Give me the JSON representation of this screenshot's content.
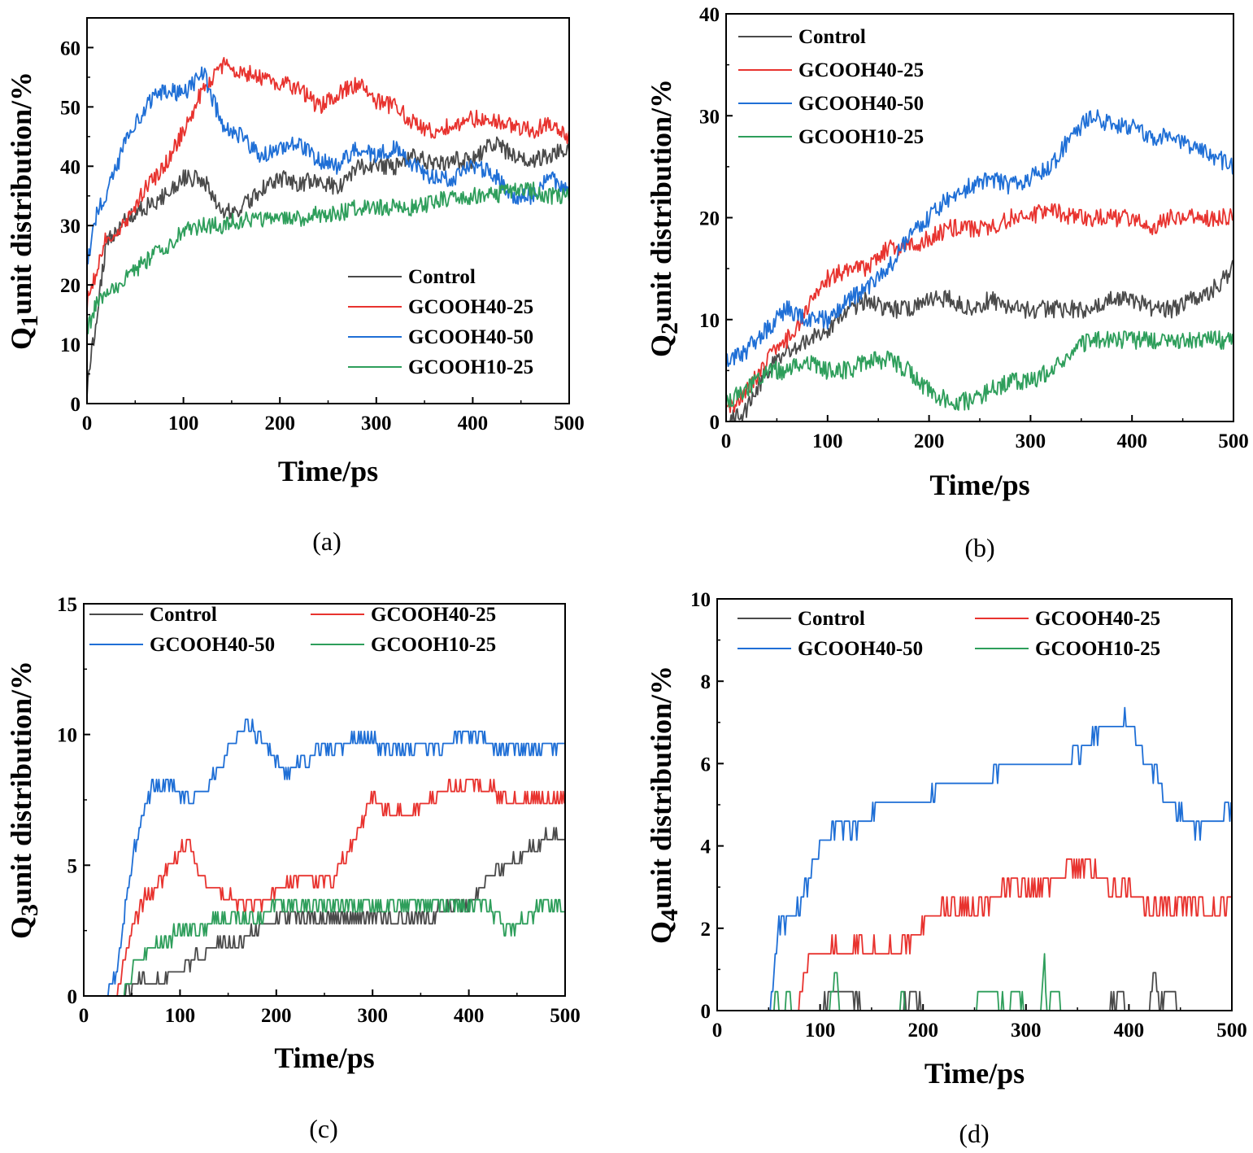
{
  "colors": {
    "Control": "#4a4a4a",
    "GCOOH40-25": "#e8332f",
    "GCOOH40-50": "#1f6fd6",
    "GCOOH10-25": "#2e9e5b"
  },
  "chart_data": [
    {
      "id": "a",
      "type": "line",
      "panel_label": "(a)",
      "ylabel_sub": "1",
      "ylabel_prefix": "Q",
      "ylabel_rest": "unit distribution/%",
      "xlabel": "Time/ps",
      "xlim": [
        0,
        500
      ],
      "ylim": [
        0,
        65
      ],
      "xticks": [
        0,
        100,
        200,
        300,
        400,
        500
      ],
      "yticks": [
        0,
        10,
        20,
        30,
        40,
        50,
        60
      ],
      "legend": {
        "position": "lower-right",
        "columns": 1
      },
      "series": [
        {
          "name": "Control",
          "x": [
            0,
            10,
            20,
            40,
            60,
            80,
            100,
            120,
            140,
            160,
            180,
            200,
            220,
            240,
            260,
            280,
            300,
            320,
            340,
            360,
            380,
            400,
            420,
            440,
            460,
            480,
            500
          ],
          "values": [
            2,
            15,
            27,
            31,
            33,
            35,
            38,
            38,
            32,
            33,
            36,
            38,
            37,
            38,
            36,
            40,
            40,
            40,
            42,
            40,
            41,
            41,
            44,
            42,
            41,
            42,
            43
          ]
        },
        {
          "name": "GCOOH40-25",
          "x": [
            0,
            10,
            20,
            40,
            60,
            80,
            100,
            120,
            140,
            160,
            180,
            200,
            220,
            240,
            260,
            280,
            300,
            320,
            340,
            360,
            380,
            400,
            420,
            440,
            460,
            480,
            500
          ],
          "values": [
            17,
            22,
            28,
            30,
            36,
            40,
            46,
            53,
            57,
            56,
            55,
            54,
            53,
            50,
            52,
            54,
            51,
            50,
            47,
            46,
            47,
            48,
            48,
            47,
            46,
            47,
            45
          ]
        },
        {
          "name": "GCOOH40-50",
          "x": [
            0,
            10,
            20,
            40,
            60,
            80,
            100,
            120,
            140,
            160,
            180,
            200,
            220,
            240,
            260,
            280,
            300,
            320,
            340,
            360,
            380,
            400,
            420,
            440,
            460,
            480,
            500
          ],
          "values": [
            23,
            32,
            35,
            44,
            50,
            53,
            52,
            56,
            47,
            45,
            42,
            43,
            44,
            41,
            40,
            43,
            42,
            43,
            40,
            38,
            38,
            40,
            39,
            35,
            35,
            38,
            36
          ]
        },
        {
          "name": "GCOOH10-25",
          "x": [
            0,
            10,
            20,
            40,
            60,
            80,
            100,
            120,
            140,
            160,
            180,
            200,
            220,
            240,
            260,
            280,
            300,
            320,
            340,
            360,
            380,
            400,
            420,
            440,
            460,
            480,
            500
          ],
          "values": [
            12,
            17,
            18,
            21,
            24,
            26,
            29,
            30,
            30,
            31,
            31,
            31,
            31,
            32,
            32,
            33,
            33,
            33,
            33,
            34,
            35,
            35,
            35,
            36,
            36,
            35,
            35
          ]
        }
      ]
    },
    {
      "id": "b",
      "type": "line",
      "panel_label": "(b)",
      "ylabel_sub": "2",
      "ylabel_prefix": "Q",
      "ylabel_rest": "unit distribution/%",
      "xlabel": "Time/ps",
      "xlim": [
        0,
        500
      ],
      "ylim": [
        0,
        40
      ],
      "xticks": [
        0,
        100,
        200,
        300,
        400,
        500
      ],
      "yticks": [
        0,
        10,
        20,
        30,
        40
      ],
      "legend": {
        "position": "top-left",
        "columns": 1
      },
      "series": [
        {
          "name": "Control",
          "x": [
            0,
            20,
            40,
            60,
            80,
            100,
            120,
            140,
            160,
            180,
            200,
            220,
            240,
            260,
            280,
            300,
            320,
            340,
            360,
            380,
            400,
            420,
            440,
            460,
            480,
            500
          ],
          "values": [
            0,
            1,
            5,
            7,
            8,
            9,
            11,
            12,
            11,
            11,
            12,
            12,
            11,
            12,
            11,
            11,
            11,
            11,
            11,
            12,
            12,
            11,
            11,
            12,
            13,
            15
          ]
        },
        {
          "name": "GCOOH40-25",
          "x": [
            0,
            20,
            40,
            60,
            80,
            100,
            120,
            140,
            160,
            180,
            200,
            220,
            240,
            260,
            280,
            300,
            320,
            340,
            360,
            380,
            400,
            420,
            440,
            460,
            480,
            500
          ],
          "values": [
            1,
            3,
            6,
            8,
            11,
            14,
            15,
            15,
            17,
            17,
            18,
            19,
            19,
            19,
            20,
            20,
            21,
            20,
            20,
            20,
            20,
            19,
            20,
            20,
            20,
            20
          ]
        },
        {
          "name": "GCOOH40-50",
          "x": [
            0,
            20,
            40,
            60,
            80,
            100,
            120,
            140,
            160,
            180,
            200,
            220,
            240,
            260,
            280,
            300,
            320,
            340,
            360,
            380,
            400,
            420,
            440,
            460,
            480,
            500
          ],
          "values": [
            6,
            7,
            9,
            11,
            10,
            10,
            12,
            13,
            15,
            18,
            20,
            22,
            23,
            24,
            23,
            24,
            25,
            28,
            30,
            29,
            29,
            28,
            28,
            27,
            26,
            25
          ]
        },
        {
          "name": "GCOOH10-25",
          "x": [
            0,
            20,
            40,
            60,
            80,
            100,
            120,
            140,
            160,
            180,
            200,
            220,
            240,
            260,
            280,
            300,
            320,
            340,
            360,
            380,
            400,
            420,
            440,
            460,
            480,
            500
          ],
          "values": [
            2,
            3,
            5,
            5,
            6,
            5,
            5,
            6,
            6,
            5,
            3,
            2,
            2,
            3,
            4,
            4,
            5,
            7,
            8,
            8,
            8,
            8,
            8,
            8,
            8,
            8
          ]
        }
      ]
    },
    {
      "id": "c",
      "type": "line",
      "panel_label": "(c)",
      "ylabel_sub": "3",
      "ylabel_prefix": "Q",
      "ylabel_rest": "unit distribution/%",
      "xlabel": "Time/ps",
      "xlim": [
        0,
        500
      ],
      "ylim": [
        0,
        15
      ],
      "xticks": [
        0,
        100,
        200,
        300,
        400,
        500
      ],
      "yticks": [
        0,
        5,
        10,
        15
      ],
      "legend": {
        "position": "top",
        "columns": 2
      },
      "series": [
        {
          "name": "Control",
          "x": [
            0,
            40,
            50,
            60,
            70,
            80,
            100,
            120,
            140,
            160,
            180,
            200,
            220,
            240,
            260,
            280,
            300,
            320,
            340,
            360,
            380,
            400,
            420,
            440,
            460,
            480,
            500
          ],
          "values": [
            0,
            0,
            0.5,
            0.5,
            0.5,
            0.5,
            1,
            1.5,
            2,
            2,
            2.5,
            3,
            3,
            3,
            3,
            3,
            3,
            3,
            3,
            3,
            3.5,
            3.5,
            4.5,
            5,
            5.5,
            6,
            6
          ]
        },
        {
          "name": "GCOOH40-25",
          "x": [
            0,
            35,
            45,
            60,
            80,
            100,
            110,
            120,
            140,
            160,
            180,
            200,
            220,
            240,
            260,
            280,
            300,
            320,
            340,
            360,
            380,
            400,
            420,
            440,
            460,
            480,
            500
          ],
          "values": [
            0,
            0,
            2,
            3.5,
            4.5,
            5.5,
            6,
            4.5,
            4,
            3.5,
            3.5,
            4,
            4.5,
            4.5,
            4.5,
            6,
            7.5,
            7,
            7,
            7.5,
            8,
            8,
            8,
            7.5,
            7.5,
            7.5,
            7.5
          ]
        },
        {
          "name": "GCOOH40-50",
          "x": [
            0,
            25,
            35,
            45,
            55,
            70,
            90,
            110,
            130,
            150,
            170,
            190,
            210,
            230,
            250,
            270,
            290,
            310,
            330,
            350,
            370,
            390,
            410,
            430,
            450,
            470,
            500
          ],
          "values": [
            0,
            0,
            1,
            4,
            6,
            8,
            8,
            7.5,
            8,
            9.5,
            10.5,
            9.5,
            8.5,
            9,
            9.5,
            9.5,
            10,
            9.5,
            9.5,
            9.5,
            9.5,
            10,
            10,
            9.5,
            9.5,
            9.5,
            9.5
          ]
        },
        {
          "name": "GCOOH10-25",
          "x": [
            0,
            40,
            50,
            60,
            80,
            100,
            120,
            140,
            160,
            180,
            200,
            220,
            240,
            260,
            280,
            300,
            320,
            340,
            360,
            380,
            400,
            420,
            440,
            460,
            480,
            500
          ],
          "values": [
            0,
            0,
            1,
            1.5,
            2,
            2.5,
            2.5,
            3,
            3,
            3,
            3.5,
            3.5,
            3.5,
            3.5,
            3.5,
            3.5,
            3.5,
            3.5,
            3.5,
            3.5,
            3.5,
            3.5,
            2.5,
            3,
            3.5,
            3.5
          ]
        }
      ]
    },
    {
      "id": "d",
      "type": "line",
      "panel_label": "(d)",
      "ylabel_sub": "4",
      "ylabel_prefix": "Q",
      "ylabel_rest": "unit distribution/%",
      "xlabel": "Time/ps",
      "xlim": [
        0,
        500
      ],
      "ylim": [
        0,
        10
      ],
      "xticks": [
        0,
        100,
        200,
        300,
        400,
        500
      ],
      "yticks": [
        0,
        2,
        4,
        6,
        8,
        10
      ],
      "legend": {
        "position": "top",
        "columns": 2
      },
      "series": [
        {
          "name": "Control",
          "x": [
            0,
            100,
            110,
            120,
            130,
            140,
            180,
            190,
            200,
            380,
            390,
            400,
            420,
            425,
            430,
            440,
            450,
            500
          ],
          "values": [
            0,
            0,
            0.5,
            0.5,
            0.5,
            0,
            0,
            0.5,
            0,
            0,
            0.5,
            0,
            0,
            1,
            0,
            0.5,
            0,
            0
          ]
        },
        {
          "name": "GCOOH40-25",
          "x": [
            0,
            78,
            85,
            100,
            120,
            140,
            160,
            180,
            200,
            220,
            240,
            260,
            280,
            300,
            320,
            340,
            360,
            380,
            400,
            420,
            440,
            460,
            480,
            500
          ],
          "values": [
            0,
            0,
            1,
            1.5,
            1.5,
            1.5,
            1.5,
            1.5,
            2,
            2.5,
            2.5,
            2.5,
            3,
            3,
            3,
            3.5,
            3.5,
            3,
            3,
            2.5,
            2.5,
            2.5,
            2.5,
            2.5
          ]
        },
        {
          "name": "GCOOH40-50",
          "x": [
            0,
            52,
            60,
            80,
            100,
            120,
            140,
            160,
            180,
            200,
            220,
            240,
            260,
            280,
            300,
            320,
            340,
            360,
            380,
            400,
            420,
            440,
            460,
            480,
            500
          ],
          "values": [
            0,
            0,
            2,
            2.5,
            4,
            4.5,
            4.5,
            5,
            5,
            5,
            5.5,
            5.5,
            5.5,
            6,
            6,
            6,
            6,
            6.5,
            7,
            7,
            6,
            5,
            4.5,
            4.5,
            5
          ]
        },
        {
          "name": "GCOOH10-25",
          "x": [
            0,
            55,
            58,
            62,
            70,
            72,
            110,
            115,
            120,
            175,
            180,
            185,
            250,
            255,
            270,
            275,
            290,
            300,
            315,
            318,
            320,
            330,
            335,
            500
          ],
          "values": [
            0,
            0,
            0.5,
            0,
            0.5,
            0,
            0,
            1,
            0,
            0,
            0.5,
            0,
            0,
            0.5,
            0.5,
            0,
            0.5,
            0,
            0,
            1.4,
            0,
            0.5,
            0,
            0
          ]
        }
      ]
    }
  ]
}
